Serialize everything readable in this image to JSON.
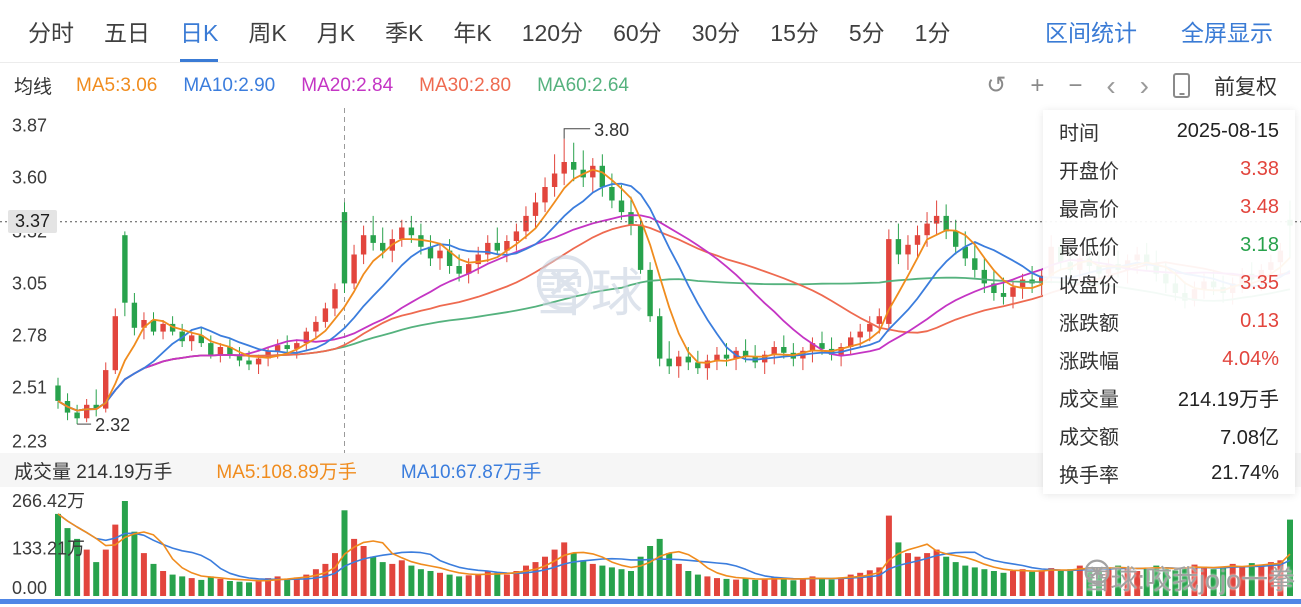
{
  "header": {
    "tabs": [
      {
        "label": "分时",
        "active": false
      },
      {
        "label": "五日",
        "active": false
      },
      {
        "label": "日K",
        "active": true
      },
      {
        "label": "周K",
        "active": false
      },
      {
        "label": "月K",
        "active": false
      },
      {
        "label": "季K",
        "active": false
      },
      {
        "label": "年K",
        "active": false
      },
      {
        "label": "120分",
        "active": false
      },
      {
        "label": "60分",
        "active": false
      },
      {
        "label": "30分",
        "active": false
      },
      {
        "label": "15分",
        "active": false
      },
      {
        "label": "5分",
        "active": false
      },
      {
        "label": "1分",
        "active": false
      }
    ],
    "actions": [
      {
        "key": "range-stats",
        "label": "区间统计"
      },
      {
        "key": "fullscreen",
        "label": "全屏显示"
      }
    ]
  },
  "ma_legend": {
    "title": "均线",
    "items": [
      {
        "label": "MA5:3.06",
        "color": "#f08c1e"
      },
      {
        "label": "MA10:2.90",
        "color": "#3b7ddd"
      },
      {
        "label": "MA20:2.84",
        "color": "#c435c4"
      },
      {
        "label": "MA30:2.80",
        "color": "#ee6a50"
      },
      {
        "label": "MA60:2.64",
        "color": "#55b27e"
      }
    ]
  },
  "toolbar": {
    "adjust_label": "前复权",
    "icons": [
      "undo",
      "zoom-in",
      "zoom-out",
      "prev",
      "next",
      "mobile"
    ]
  },
  "info_panel": {
    "rows": [
      {
        "key": "time",
        "label": "时间",
        "value": "2025-08-15",
        "color": "#222222"
      },
      {
        "key": "open",
        "label": "开盘价",
        "value": "3.38",
        "color": "#e2453d"
      },
      {
        "key": "high",
        "label": "最高价",
        "value": "3.48",
        "color": "#e2453d"
      },
      {
        "key": "low",
        "label": "最低价",
        "value": "3.18",
        "color": "#28a24c"
      },
      {
        "key": "close",
        "label": "收盘价",
        "value": "3.35",
        "color": "#e2453d"
      },
      {
        "key": "change",
        "label": "涨跌额",
        "value": "0.13",
        "color": "#e2453d"
      },
      {
        "key": "change-percent",
        "label": "涨跌幅",
        "value": "4.04%",
        "color": "#e2453d"
      },
      {
        "key": "volume",
        "label": "成交量",
        "value": "214.19万手",
        "color": "#222222"
      },
      {
        "key": "amount",
        "label": "成交额",
        "value": "7.08亿",
        "color": "#222222"
      },
      {
        "key": "turnover",
        "label": "换手率",
        "value": "21.74%",
        "color": "#222222"
      }
    ]
  },
  "volume_legend": {
    "volume_label": "成交量 214.19万手",
    "ma_items": [
      {
        "label": "MA5:108.89万手",
        "color": "#f08c1e"
      },
      {
        "label": "MA10:67.87万手",
        "color": "#3b7ddd"
      }
    ]
  },
  "watermark": {
    "center_text": "雪球",
    "bottom_text": "雪球:咬我jojo一拳"
  },
  "chart_data": {
    "type": "candlestick",
    "title": "日K candlestick chart with MA lines and volume",
    "legend_position": "top-left",
    "grid": false,
    "price_axis_labels": [
      {
        "label": "3.87",
        "price": 3.87
      },
      {
        "label": "3.60",
        "price": 3.6
      },
      {
        "label": "3.32",
        "price": 3.32
      },
      {
        "label": "3.05",
        "price": 3.05
      },
      {
        "label": "2.78",
        "price": 2.78
      },
      {
        "label": "2.51",
        "price": 2.51
      },
      {
        "label": "2.23",
        "price": 2.23
      }
    ],
    "volume_axis_labels": [
      {
        "label": "266.42万",
        "value": 266.42
      },
      {
        "label": "133.21万",
        "value": 133.21
      },
      {
        "label": "0.00",
        "value": 0
      }
    ],
    "current_price": 3.37,
    "current_price_label": "3.37",
    "annotations": {
      "max": {
        "index": 53,
        "price": 3.8,
        "label": "3.80"
      },
      "min": {
        "index": 2,
        "price": 2.32,
        "label": "2.32"
      }
    },
    "crosshair_index": 30,
    "price_range": [
      2.17,
      3.96
    ],
    "volume_scale_max": 280,
    "ma_periods": [
      5,
      10,
      20,
      30,
      60
    ],
    "volume_ma_periods": [
      5,
      10
    ],
    "colors": {
      "up": "#e2453d",
      "down": "#28a24c",
      "ma5": "#f08c1e",
      "ma10": "#3b7ddd",
      "ma20": "#c435c4",
      "ma30": "#ee6a50",
      "ma60": "#55b27e",
      "link": "#3a7bd5"
    },
    "candles": [
      [
        2.52,
        2.56,
        2.4,
        2.44
      ],
      [
        2.44,
        2.48,
        2.34,
        2.38
      ],
      [
        2.38,
        2.42,
        2.32,
        2.35
      ],
      [
        2.35,
        2.45,
        2.33,
        2.42
      ],
      [
        2.42,
        2.5,
        2.36,
        2.4
      ],
      [
        2.4,
        2.64,
        2.38,
        2.6
      ],
      [
        2.6,
        2.92,
        2.58,
        2.88
      ],
      [
        3.3,
        3.32,
        2.88,
        2.95
      ],
      [
        2.95,
        3.0,
        2.78,
        2.82
      ],
      [
        2.82,
        2.9,
        2.76,
        2.86
      ],
      [
        2.86,
        2.9,
        2.78,
        2.8
      ],
      [
        2.8,
        2.86,
        2.76,
        2.84
      ],
      [
        2.84,
        2.88,
        2.78,
        2.8
      ],
      [
        2.8,
        2.84,
        2.72,
        2.75
      ],
      [
        2.75,
        2.8,
        2.7,
        2.78
      ],
      [
        2.78,
        2.82,
        2.72,
        2.74
      ],
      [
        2.74,
        2.78,
        2.66,
        2.68
      ],
      [
        2.68,
        2.74,
        2.64,
        2.72
      ],
      [
        2.72,
        2.76,
        2.66,
        2.68
      ],
      [
        2.68,
        2.72,
        2.62,
        2.65
      ],
      [
        2.65,
        2.7,
        2.6,
        2.63
      ],
      [
        2.63,
        2.68,
        2.58,
        2.66
      ],
      [
        2.66,
        2.72,
        2.62,
        2.7
      ],
      [
        2.7,
        2.76,
        2.66,
        2.73
      ],
      [
        2.73,
        2.78,
        2.68,
        2.71
      ],
      [
        2.71,
        2.76,
        2.66,
        2.74
      ],
      [
        2.74,
        2.82,
        2.7,
        2.8
      ],
      [
        2.8,
        2.88,
        2.76,
        2.85
      ],
      [
        2.85,
        2.95,
        2.82,
        2.92
      ],
      [
        2.92,
        3.05,
        2.88,
        3.02
      ],
      [
        3.42,
        3.47,
        3.0,
        3.05
      ],
      [
        3.05,
        3.25,
        3.02,
        3.2
      ],
      [
        3.2,
        3.35,
        3.15,
        3.3
      ],
      [
        3.3,
        3.4,
        3.22,
        3.26
      ],
      [
        3.26,
        3.34,
        3.18,
        3.22
      ],
      [
        3.22,
        3.33,
        3.16,
        3.28
      ],
      [
        3.28,
        3.38,
        3.24,
        3.34
      ],
      [
        3.34,
        3.4,
        3.26,
        3.3
      ],
      [
        3.3,
        3.36,
        3.2,
        3.24
      ],
      [
        3.24,
        3.3,
        3.14,
        3.18
      ],
      [
        3.18,
        3.26,
        3.12,
        3.22
      ],
      [
        3.22,
        3.28,
        3.1,
        3.14
      ],
      [
        3.14,
        3.2,
        3.06,
        3.1
      ],
      [
        3.1,
        3.18,
        3.05,
        3.15
      ],
      [
        3.15,
        3.24,
        3.1,
        3.2
      ],
      [
        3.2,
        3.3,
        3.16,
        3.26
      ],
      [
        3.26,
        3.34,
        3.2,
        3.22
      ],
      [
        3.22,
        3.3,
        3.16,
        3.27
      ],
      [
        3.27,
        3.36,
        3.22,
        3.32
      ],
      [
        3.32,
        3.45,
        3.28,
        3.4
      ],
      [
        3.4,
        3.52,
        3.34,
        3.47
      ],
      [
        3.47,
        3.6,
        3.42,
        3.55
      ],
      [
        3.55,
        3.72,
        3.5,
        3.62
      ],
      [
        3.62,
        3.8,
        3.56,
        3.68
      ],
      [
        3.68,
        3.78,
        3.58,
        3.64
      ],
      [
        3.64,
        3.74,
        3.55,
        3.6
      ],
      [
        3.6,
        3.7,
        3.52,
        3.66
      ],
      [
        3.66,
        3.72,
        3.5,
        3.55
      ],
      [
        3.55,
        3.62,
        3.44,
        3.48
      ],
      [
        3.48,
        3.56,
        3.38,
        3.42
      ],
      [
        3.42,
        3.5,
        3.3,
        3.35
      ],
      [
        3.35,
        3.38,
        3.1,
        3.12
      ],
      [
        3.12,
        3.16,
        2.85,
        2.88
      ],
      [
        2.88,
        2.92,
        2.62,
        2.66
      ],
      [
        2.66,
        2.75,
        2.58,
        2.62
      ],
      [
        2.62,
        2.7,
        2.56,
        2.67
      ],
      [
        2.67,
        2.72,
        2.6,
        2.64
      ],
      [
        2.64,
        2.7,
        2.58,
        2.61
      ],
      [
        2.61,
        2.68,
        2.55,
        2.65
      ],
      [
        2.65,
        2.72,
        2.6,
        2.68
      ],
      [
        2.68,
        2.74,
        2.62,
        2.66
      ],
      [
        2.66,
        2.72,
        2.6,
        2.7
      ],
      [
        2.7,
        2.76,
        2.64,
        2.67
      ],
      [
        2.67,
        2.73,
        2.61,
        2.64
      ],
      [
        2.64,
        2.7,
        2.58,
        2.68
      ],
      [
        2.68,
        2.75,
        2.63,
        2.72
      ],
      [
        2.72,
        2.78,
        2.66,
        2.69
      ],
      [
        2.69,
        2.74,
        2.62,
        2.66
      ],
      [
        2.66,
        2.72,
        2.6,
        2.7
      ],
      [
        2.7,
        2.77,
        2.64,
        2.74
      ],
      [
        2.74,
        2.8,
        2.68,
        2.71
      ],
      [
        2.71,
        2.77,
        2.65,
        2.68
      ],
      [
        2.68,
        2.74,
        2.62,
        2.72
      ],
      [
        2.72,
        2.8,
        2.68,
        2.77
      ],
      [
        2.77,
        2.84,
        2.72,
        2.8
      ],
      [
        2.8,
        2.88,
        2.75,
        2.84
      ],
      [
        2.84,
        2.92,
        2.79,
        2.88
      ],
      [
        2.84,
        3.33,
        2.8,
        3.28
      ],
      [
        3.28,
        3.36,
        3.15,
        3.2
      ],
      [
        3.2,
        3.3,
        3.12,
        3.25
      ],
      [
        3.25,
        3.35,
        3.18,
        3.3
      ],
      [
        3.3,
        3.42,
        3.24,
        3.36
      ],
      [
        3.36,
        3.48,
        3.3,
        3.4
      ],
      [
        3.4,
        3.46,
        3.28,
        3.32
      ],
      [
        3.32,
        3.38,
        3.2,
        3.24
      ],
      [
        3.24,
        3.32,
        3.14,
        3.18
      ],
      [
        3.18,
        3.26,
        3.08,
        3.12
      ],
      [
        3.12,
        3.18,
        3.0,
        3.05
      ],
      [
        3.05,
        3.12,
        2.96,
        3.0
      ],
      [
        3.0,
        3.08,
        2.94,
        2.98
      ],
      [
        2.98,
        3.06,
        2.92,
        3.03
      ],
      [
        3.03,
        3.1,
        2.97,
        3.07
      ],
      [
        3.07,
        3.14,
        3.0,
        3.05
      ],
      [
        3.05,
        3.12,
        2.99,
        3.09
      ],
      [
        3.09,
        3.3,
        3.05,
        3.24
      ],
      [
        3.24,
        3.28,
        3.12,
        3.16
      ],
      [
        3.16,
        3.22,
        3.08,
        3.12
      ],
      [
        3.12,
        3.2,
        3.06,
        3.18
      ],
      [
        3.18,
        3.26,
        3.1,
        3.14
      ],
      [
        3.14,
        3.2,
        3.06,
        3.1
      ],
      [
        3.1,
        3.18,
        3.04,
        3.15
      ],
      [
        3.15,
        3.22,
        3.08,
        3.12
      ],
      [
        3.12,
        3.2,
        3.05,
        3.17
      ],
      [
        3.17,
        3.24,
        3.1,
        3.2
      ],
      [
        3.2,
        3.26,
        3.12,
        3.15
      ],
      [
        3.15,
        3.22,
        3.06,
        3.1
      ],
      [
        3.1,
        3.16,
        3.0,
        3.05
      ],
      [
        3.05,
        3.12,
        2.96,
        3.0
      ],
      [
        3.0,
        3.06,
        2.92,
        2.96
      ],
      [
        2.96,
        3.06,
        2.93,
        3.02
      ],
      [
        3.02,
        3.1,
        2.97,
        3.06
      ],
      [
        3.06,
        3.12,
        2.99,
        3.03
      ],
      [
        3.03,
        3.09,
        2.95,
        3.0
      ],
      [
        3.0,
        3.08,
        2.94,
        3.05
      ],
      [
        3.05,
        3.13,
        3.0,
        3.1
      ],
      [
        3.1,
        3.16,
        3.03,
        3.07
      ],
      [
        3.07,
        3.15,
        3.01,
        3.12
      ],
      [
        3.12,
        3.2,
        3.06,
        3.16
      ],
      [
        3.16,
        3.26,
        3.1,
        3.22
      ],
      [
        3.38,
        3.48,
        3.18,
        3.35
      ]
    ],
    "volumes": [
      230,
      190,
      160,
      130,
      95,
      130,
      200,
      266,
      180,
      120,
      90,
      70,
      60,
      55,
      50,
      45,
      55,
      48,
      42,
      40,
      38,
      45,
      50,
      55,
      48,
      52,
      60,
      75,
      90,
      120,
      240,
      160,
      140,
      110,
      95,
      90,
      100,
      85,
      75,
      70,
      65,
      60,
      55,
      58,
      62,
      70,
      65,
      60,
      70,
      85,
      95,
      110,
      130,
      150,
      120,
      100,
      90,
      85,
      80,
      75,
      70,
      110,
      140,
      160,
      120,
      90,
      70,
      60,
      55,
      50,
      48,
      46,
      50,
      45,
      48,
      52,
      47,
      44,
      50,
      55,
      50,
      46,
      52,
      60,
      65,
      72,
      80,
      225,
      150,
      120,
      110,
      120,
      130,
      110,
      95,
      85,
      80,
      75,
      70,
      65,
      70,
      75,
      68,
      72,
      78,
      70,
      75,
      85,
      80,
      72,
      78,
      85,
      80,
      70,
      76,
      85,
      80,
      72,
      80,
      88,
      82,
      75,
      82,
      90,
      84,
      92,
      86,
      95,
      100,
      214
    ]
  }
}
